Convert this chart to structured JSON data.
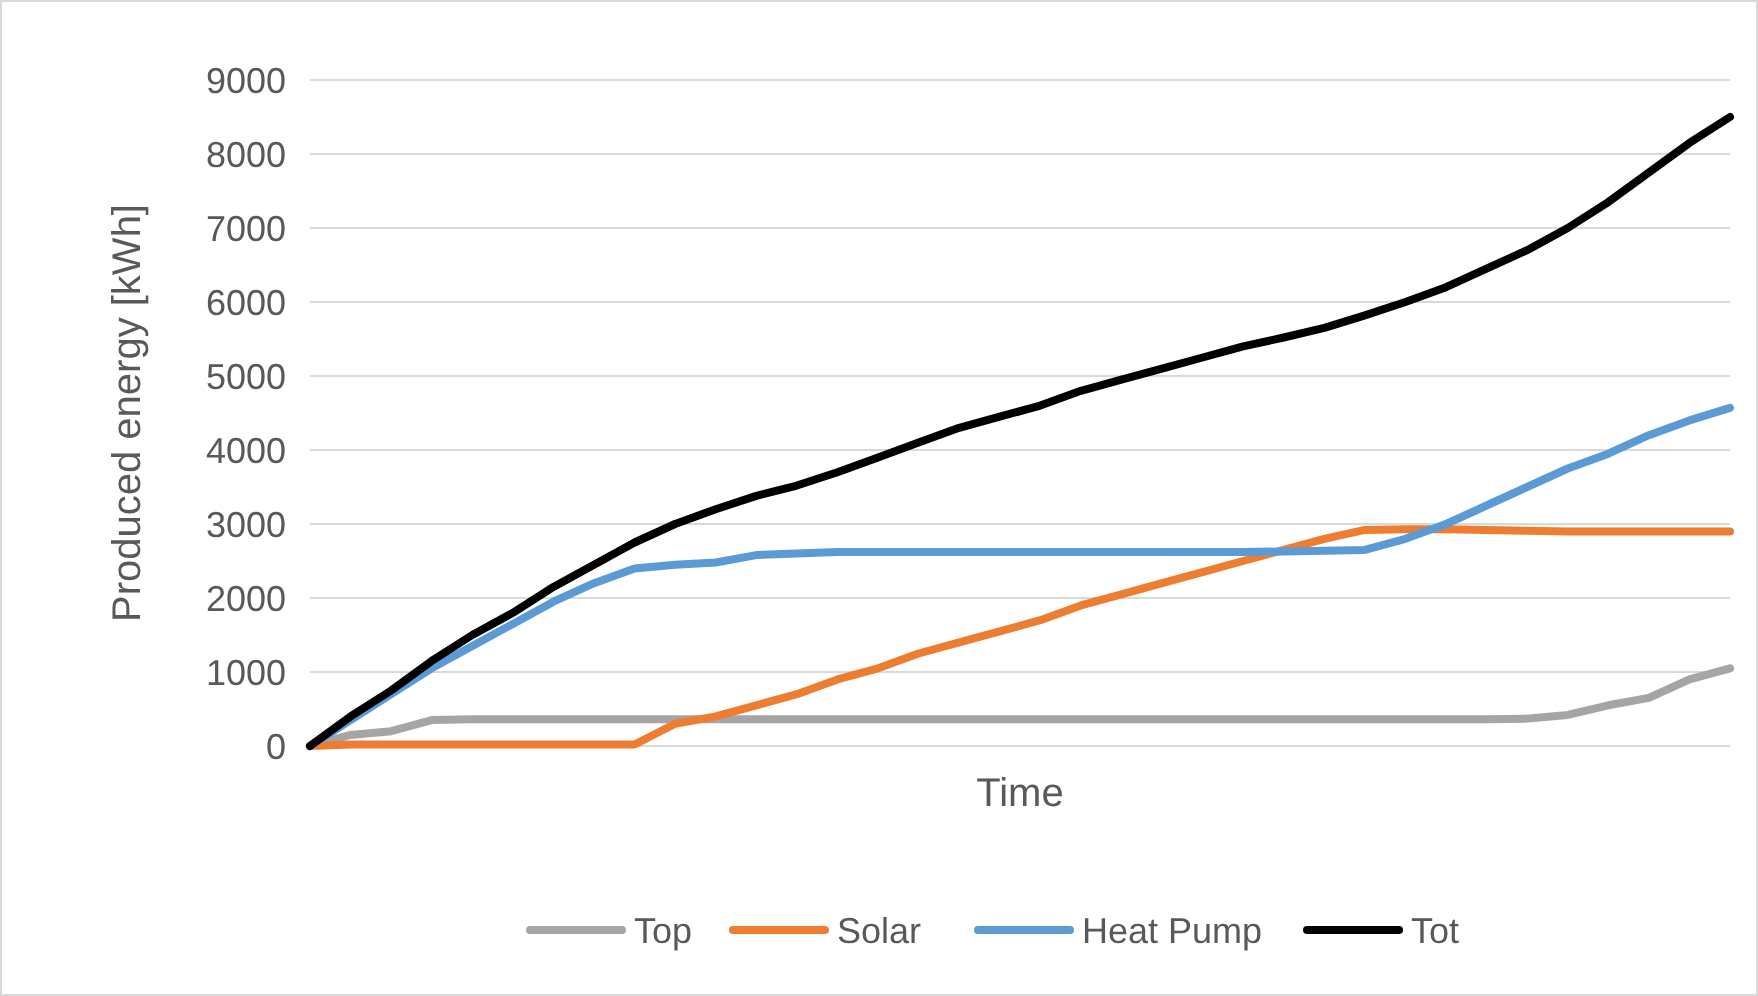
{
  "chart_data": {
    "type": "line",
    "xlabel": "Time",
    "ylabel": "Produced energy [kWh]",
    "categories": [
      null,
      null,
      null,
      null,
      null,
      null,
      null,
      null,
      null,
      null,
      null,
      null,
      null,
      null,
      null,
      null,
      null,
      null,
      null,
      null,
      null,
      null,
      null,
      null,
      null,
      null,
      null,
      null,
      null,
      null,
      null,
      null,
      null,
      null,
      null,
      null
    ],
    "series": [
      {
        "name": "Top",
        "color": "#a5a5a5",
        "values": [
          0,
          150,
          200,
          350,
          360,
          360,
          360,
          360,
          360,
          360,
          360,
          360,
          360,
          360,
          360,
          360,
          360,
          360,
          360,
          360,
          360,
          360,
          360,
          360,
          360,
          360,
          360,
          360,
          360,
          360,
          370,
          420,
          550,
          650,
          900,
          1050
        ]
      },
      {
        "name": "Solar",
        "color": "#ed7d31",
        "values": [
          0,
          20,
          20,
          20,
          20,
          20,
          20,
          20,
          20,
          300,
          400,
          550,
          700,
          900,
          1050,
          1250,
          1400,
          1550,
          1700,
          1900,
          2050,
          2200,
          2350,
          2500,
          2650,
          2800,
          2920,
          2930,
          2930,
          2920,
          2910,
          2900,
          2900,
          2900,
          2900,
          2900
        ]
      },
      {
        "name": "Heat Pump",
        "color": "#5b9bd5",
        "values": [
          0,
          350,
          700,
          1050,
          1350,
          1650,
          1950,
          2200,
          2400,
          2450,
          2480,
          2580,
          2600,
          2620,
          2620,
          2620,
          2620,
          2620,
          2620,
          2620,
          2620,
          2620,
          2620,
          2620,
          2630,
          2640,
          2650,
          2800,
          3000,
          3250,
          3500,
          3750,
          3950,
          4200,
          4400,
          4570
        ]
      },
      {
        "name": "Tot",
        "color": "#000000",
        "values": [
          0,
          400,
          750,
          1150,
          1500,
          1800,
          2150,
          2450,
          2750,
          3000,
          3200,
          3380,
          3520,
          3700,
          3900,
          4100,
          4300,
          4450,
          4600,
          4800,
          4950,
          5100,
          5250,
          5400,
          5520,
          5650,
          5820,
          6000,
          6200,
          6450,
          6700,
          7000,
          7350,
          7750,
          8150,
          8500
        ]
      }
    ],
    "ylim": [
      0,
      9000
    ],
    "yticks": [
      0,
      1000,
      2000,
      3000,
      4000,
      5000,
      6000,
      7000,
      8000,
      9000
    ],
    "grid": "y",
    "legend": "bottom",
    "line_style": "solid"
  }
}
